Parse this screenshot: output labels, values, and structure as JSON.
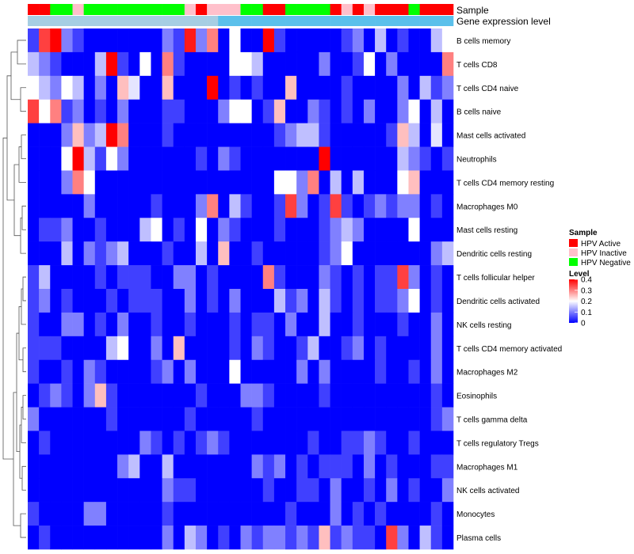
{
  "chart_data": {
    "type": "heatmap",
    "title": "",
    "annotation_tracks": [
      "Sample",
      "Gene expression level"
    ],
    "row_labels": [
      "B cells memory",
      "T cells CD8",
      "T cells CD4 naive",
      "B cells naive",
      "Mast cells activated",
      "Neutrophils",
      "T cells CD4 memory resting",
      "Macrophages M0",
      "Mast cells resting",
      "Dendritic cells resting",
      "T cells follicular helper",
      "Dendritic cells activated",
      "NK cells resting",
      "T cells CD4 memory activated",
      "Macrophages M2",
      "Eosinophils",
      "T cells gamma delta",
      "T cells regulatory  Tregs",
      "Macrophages M1",
      "NK cells activated",
      "Monocytes",
      "Plasma cells"
    ],
    "sample_groups": [
      "HPV Active",
      "HPV Active",
      "HPV Negative",
      "HPV Negative",
      "HPV Inactive",
      "HPV Negative",
      "HPV Negative",
      "HPV Negative",
      "HPV Negative",
      "HPV Negative",
      "HPV Negative",
      "HPV Negative",
      "HPV Negative",
      "HPV Negative",
      "HPV Inactive",
      "HPV Active",
      "HPV Inactive",
      "HPV Inactive",
      "HPV Inactive",
      "HPV Negative",
      "HPV Negative",
      "HPV Active",
      "HPV Active",
      "HPV Negative",
      "HPV Negative",
      "HPV Negative",
      "HPV Negative",
      "HPV Active",
      "HPV Inactive",
      "HPV Active",
      "HPV Inactive",
      "HPV Active",
      "HPV Active",
      "HPV Active",
      "HPV Negative",
      "HPV Active",
      "HPV Active",
      "HPV Active"
    ],
    "expression_level_groups": [
      "low",
      "low",
      "low",
      "low",
      "low",
      "low",
      "low",
      "low",
      "low",
      "low",
      "low",
      "low",
      "low",
      "low",
      "low",
      "low",
      "low",
      "high",
      "high",
      "high",
      "high",
      "high",
      "high",
      "high",
      "high",
      "high",
      "high",
      "high",
      "high",
      "high",
      "high",
      "high",
      "high",
      "high",
      "high",
      "high",
      "high",
      "high"
    ],
    "values": [
      [
        0.05,
        0.35,
        0.4,
        0.1,
        0.05,
        0,
        0,
        0,
        0,
        0,
        0,
        0,
        0.1,
        0.05,
        0.38,
        0.1,
        0.3,
        0,
        0.2,
        0,
        0,
        0.4,
        0.05,
        0,
        0,
        0,
        0,
        0,
        0.05,
        0.1,
        0,
        0.15,
        0,
        0.05,
        0,
        0,
        0.15,
        0.2
      ],
      [
        0.15,
        0.1,
        0.05,
        0,
        0,
        0,
        0.15,
        0.4,
        0.05,
        0,
        0.2,
        0,
        0.3,
        0.05,
        0,
        0,
        0,
        0,
        0.2,
        0.2,
        0.15,
        0,
        0,
        0,
        0,
        0,
        0.1,
        0,
        0,
        0.05,
        0.2,
        0,
        0.1,
        0,
        0,
        0,
        0,
        0.3
      ],
      [
        0.2,
        0.15,
        0.1,
        0.2,
        0.15,
        0,
        0.1,
        0,
        0.25,
        0.18,
        0,
        0,
        0.25,
        0,
        0,
        0,
        0.4,
        0,
        0.05,
        0,
        0.05,
        0,
        0,
        0.25,
        0,
        0,
        0,
        0,
        0.05,
        0,
        0,
        0,
        0,
        0.1,
        0,
        0.15,
        0.05,
        0.1
      ],
      [
        0.35,
        0.2,
        0.3,
        0.05,
        0.1,
        0,
        0.05,
        0,
        0.1,
        0,
        0,
        0,
        0.05,
        0.05,
        0,
        0,
        0,
        0.1,
        0.2,
        0.2,
        0,
        0.05,
        0.25,
        0,
        0,
        0.1,
        0.05,
        0,
        0.05,
        0,
        0.1,
        0,
        0,
        0.1,
        0.2,
        0,
        0.15,
        0
      ],
      [
        0,
        0,
        0,
        0.1,
        0.25,
        0.1,
        0.15,
        0.4,
        0.3,
        0,
        0,
        0,
        0.05,
        0,
        0,
        0,
        0,
        0,
        0,
        0,
        0,
        0,
        0.05,
        0.1,
        0.15,
        0.15,
        0.05,
        0,
        0,
        0,
        0,
        0,
        0.05,
        0.25,
        0.15,
        0,
        0.18,
        0
      ],
      [
        0,
        0,
        0,
        0.2,
        0.4,
        0.15,
        0.05,
        0.2,
        0.1,
        0,
        0,
        0,
        0,
        0,
        0,
        0.05,
        0,
        0.1,
        0.05,
        0,
        0,
        0,
        0,
        0,
        0,
        0,
        0.4,
        0,
        0,
        0,
        0,
        0,
        0,
        0.15,
        0.1,
        0.05,
        0,
        0.05
      ],
      [
        0,
        0,
        0,
        0.1,
        0.3,
        0.2,
        0,
        0,
        0,
        0,
        0,
        0,
        0,
        0,
        0,
        0,
        0,
        0,
        0,
        0,
        0,
        0,
        0.2,
        0.2,
        0.1,
        0.3,
        0,
        0.15,
        0,
        0.15,
        0,
        0,
        0,
        0.2,
        0.25,
        0,
        0,
        0
      ],
      [
        0,
        0,
        0,
        0,
        0,
        0.1,
        0,
        0,
        0,
        0,
        0,
        0.05,
        0,
        0,
        0,
        0.1,
        0.3,
        0,
        0.15,
        0.05,
        0,
        0,
        0.05,
        0.35,
        0.1,
        0,
        0.05,
        0.35,
        0.05,
        0,
        0.05,
        0.1,
        0.05,
        0.1,
        0.1,
        0,
        0.05,
        0
      ],
      [
        0,
        0.05,
        0.05,
        0.1,
        0,
        0,
        0.05,
        0,
        0,
        0,
        0.15,
        0.2,
        0,
        0.05,
        0,
        0.2,
        0,
        0.1,
        0.05,
        0,
        0,
        0,
        0.05,
        0,
        0,
        0,
        0.05,
        0.1,
        0.15,
        0.1,
        0,
        0,
        0,
        0,
        0.2,
        0,
        0,
        0
      ],
      [
        0,
        0,
        0,
        0.15,
        0,
        0.1,
        0.05,
        0.1,
        0.15,
        0,
        0,
        0,
        0.05,
        0,
        0,
        0.15,
        0,
        0.25,
        0,
        0,
        0.05,
        0,
        0,
        0,
        0,
        0,
        0.05,
        0.1,
        0.2,
        0,
        0,
        0,
        0,
        0,
        0,
        0,
        0.1,
        0.15
      ],
      [
        0.05,
        0.15,
        0,
        0,
        0,
        0,
        0.05,
        0,
        0.05,
        0.05,
        0.05,
        0,
        0,
        0.1,
        0.1,
        0,
        0.05,
        0,
        0,
        0,
        0,
        0.3,
        0.05,
        0,
        0,
        0,
        0.1,
        0.05,
        0,
        0.05,
        0,
        0.05,
        0.05,
        0.35,
        0.1,
        0,
        0.05,
        0
      ],
      [
        0.05,
        0.1,
        0,
        0.05,
        0,
        0,
        0,
        0.05,
        0,
        0.05,
        0.05,
        0.05,
        0,
        0,
        0.1,
        0,
        0.05,
        0,
        0.1,
        0,
        0,
        0,
        0.15,
        0.05,
        0.1,
        0,
        0.15,
        0.05,
        0,
        0.05,
        0,
        0.05,
        0.05,
        0.1,
        0.2,
        0,
        0.05,
        0
      ],
      [
        0.05,
        0,
        0,
        0.1,
        0.1,
        0,
        0.05,
        0,
        0.1,
        0,
        0,
        0.05,
        0,
        0,
        0.05,
        0,
        0,
        0,
        0.05,
        0,
        0.05,
        0.05,
        0,
        0.1,
        0,
        0,
        0.15,
        0,
        0,
        0.05,
        0,
        0,
        0,
        0.05,
        0,
        0,
        0.1,
        0
      ],
      [
        0.05,
        0.05,
        0.05,
        0,
        0,
        0,
        0,
        0.15,
        0.2,
        0,
        0,
        0.1,
        0,
        0.25,
        0,
        0,
        0,
        0,
        0.05,
        0,
        0.1,
        0.05,
        0,
        0,
        0.05,
        0.15,
        0,
        0,
        0.05,
        0.1,
        0,
        0.05,
        0,
        0,
        0,
        0,
        0.1,
        0
      ],
      [
        0.05,
        0,
        0,
        0.05,
        0,
        0.1,
        0.05,
        0,
        0,
        0,
        0,
        0.05,
        0.1,
        0,
        0.1,
        0,
        0,
        0,
        0.2,
        0,
        0,
        0,
        0,
        0,
        0.1,
        0,
        0.1,
        0,
        0,
        0,
        0,
        0.05,
        0,
        0,
        0.05,
        0,
        0.1,
        0
      ],
      [
        0,
        0.05,
        0.1,
        0.05,
        0,
        0.1,
        0.25,
        0.05,
        0,
        0,
        0,
        0,
        0,
        0,
        0,
        0.05,
        0,
        0,
        0,
        0.1,
        0.1,
        0.05,
        0,
        0,
        0,
        0,
        0.05,
        0,
        0,
        0,
        0,
        0,
        0,
        0,
        0,
        0,
        0.05,
        0
      ],
      [
        0.1,
        0,
        0,
        0,
        0,
        0,
        0,
        0.05,
        0,
        0,
        0,
        0,
        0,
        0,
        0.05,
        0,
        0,
        0,
        0,
        0,
        0.05,
        0,
        0,
        0,
        0,
        0,
        0,
        0,
        0,
        0,
        0,
        0,
        0,
        0,
        0,
        0,
        0.05,
        0.1
      ],
      [
        0,
        0.05,
        0,
        0,
        0,
        0,
        0,
        0,
        0,
        0,
        0.1,
        0.05,
        0,
        0.05,
        0,
        0.05,
        0.1,
        0.05,
        0,
        0,
        0,
        0,
        0,
        0,
        0,
        0.05,
        0,
        0,
        0.05,
        0.05,
        0.1,
        0.05,
        0,
        0,
        0.05,
        0,
        0,
        0
      ],
      [
        0,
        0,
        0,
        0,
        0,
        0,
        0,
        0,
        0.1,
        0.15,
        0,
        0,
        0.15,
        0,
        0,
        0,
        0,
        0,
        0,
        0,
        0.1,
        0.05,
        0.1,
        0,
        0.05,
        0,
        0.05,
        0.05,
        0.05,
        0,
        0.1,
        0,
        0.05,
        0,
        0,
        0,
        0.05,
        0.05
      ],
      [
        0,
        0,
        0,
        0,
        0,
        0,
        0,
        0,
        0,
        0,
        0,
        0,
        0.1,
        0.05,
        0.05,
        0,
        0,
        0,
        0,
        0,
        0,
        0.05,
        0,
        0,
        0.05,
        0.05,
        0,
        0.1,
        0,
        0,
        0.05,
        0,
        0.1,
        0,
        0.05,
        0,
        0,
        0.1
      ],
      [
        0.05,
        0,
        0,
        0,
        0,
        0.1,
        0.1,
        0,
        0,
        0,
        0,
        0,
        0.05,
        0,
        0,
        0,
        0,
        0,
        0,
        0,
        0,
        0,
        0,
        0.05,
        0,
        0,
        0,
        0.1,
        0,
        0.05,
        0,
        0.05,
        0,
        0,
        0,
        0,
        0.05,
        0
      ],
      [
        0,
        0.05,
        0,
        0,
        0,
        0,
        0,
        0,
        0,
        0,
        0,
        0,
        0.1,
        0,
        0.15,
        0.1,
        0,
        0.05,
        0,
        0.1,
        0.05,
        0.1,
        0.1,
        0.05,
        0.1,
        0.05,
        0.25,
        0.05,
        0.1,
        0.05,
        0.05,
        0,
        0.35,
        0.1,
        0,
        0.15,
        0.05,
        0
      ]
    ],
    "legend": {
      "sample_title": "Sample",
      "sample_entries": [
        {
          "label": "HPV Active",
          "color": "#ff0000"
        },
        {
          "label": "HPV Inactive",
          "color": "#ffc0cb"
        },
        {
          "label": "HPV Negative",
          "color": "#00ff00"
        }
      ],
      "level_title": "Level",
      "level_ticks": [
        {
          "value": 0.4,
          "label": "0.4"
        },
        {
          "value": 0.3,
          "label": "0.3"
        },
        {
          "value": 0.2,
          "label": "0.2"
        },
        {
          "value": 0.1,
          "label": "0.1"
        },
        {
          "value": 0,
          "label": "0"
        }
      ],
      "level_range": [
        0,
        0.4
      ],
      "position": "right"
    },
    "color_scale": {
      "low": "#0000ff",
      "mid": "#ffffff",
      "high": "#ff0000",
      "mid_value": 0.2
    },
    "expression_level_colors": {
      "low": "#a6cee3",
      "high": "#5bc0eb"
    },
    "dendrogram": "rows"
  }
}
